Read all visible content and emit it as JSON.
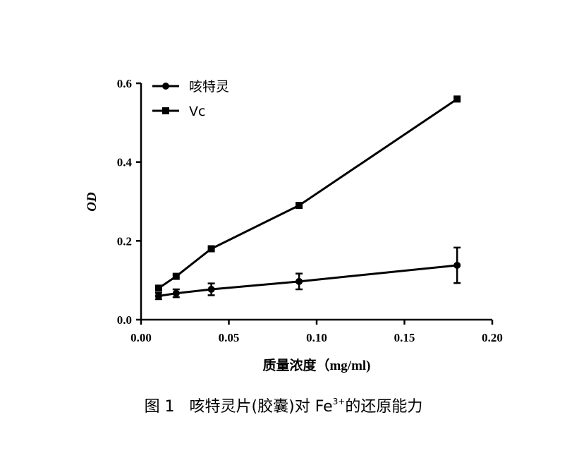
{
  "chart_data": {
    "type": "line",
    "xlabel": "质量浓度（mg/ml)",
    "ylabel": "OD",
    "xlim": [
      0.0,
      0.2
    ],
    "ylim": [
      0.0,
      0.6
    ],
    "xticks": [
      "0.00",
      "0.05",
      "0.10",
      "0.15",
      "0.20"
    ],
    "yticks": [
      "0.0",
      "0.2",
      "0.4",
      "0.6"
    ],
    "legend_position": "top-left",
    "grid": false,
    "series": [
      {
        "name": "咳特灵",
        "marker": "circle",
        "x": [
          0.01,
          0.02,
          0.04,
          0.09,
          0.18
        ],
        "y": [
          0.06,
          0.067,
          0.077,
          0.097,
          0.138
        ],
        "error": [
          0.008,
          0.01,
          0.015,
          0.02,
          0.045
        ]
      },
      {
        "name": "Vc",
        "marker": "square",
        "x": [
          0.01,
          0.02,
          0.04,
          0.09,
          0.18
        ],
        "y": [
          0.08,
          0.11,
          0.18,
          0.29,
          0.56
        ]
      }
    ]
  },
  "caption": {
    "figure_number": "图 1",
    "text_before_sup": "咳特灵片(胶囊)对 Fe",
    "superscript": "3+",
    "text_after_sup": "的还原能力"
  }
}
